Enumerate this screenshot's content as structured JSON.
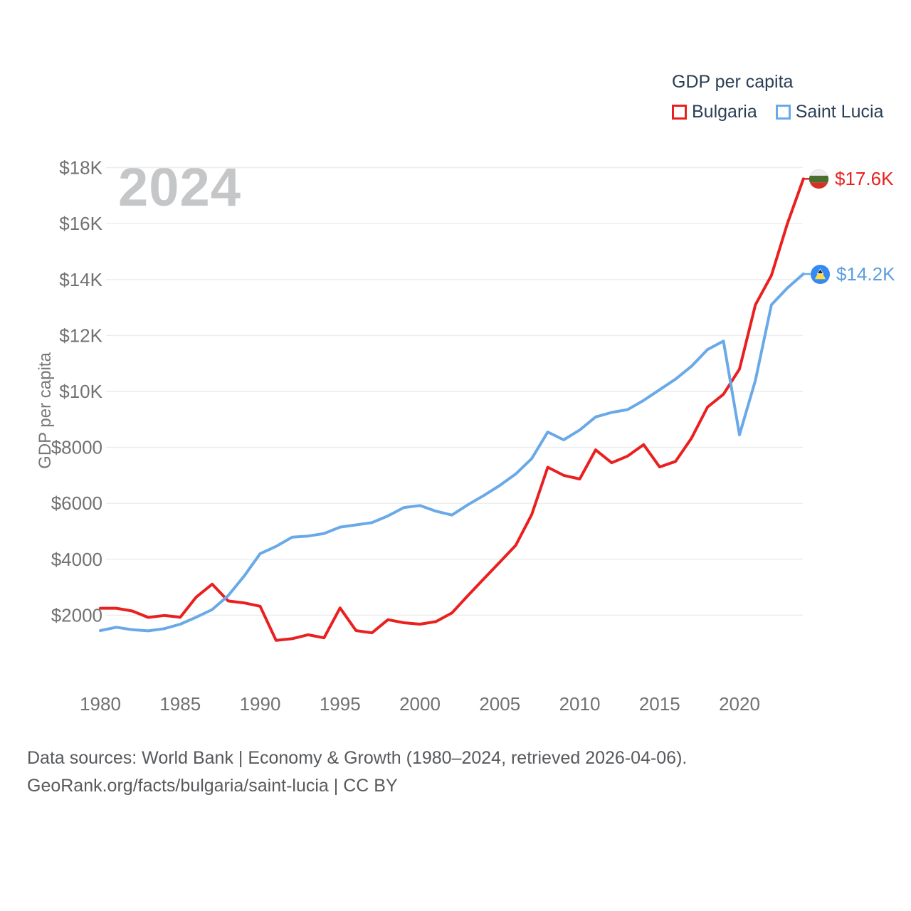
{
  "legend": {
    "title": "GDP per capita",
    "items": [
      {
        "label": "Bulgaria",
        "color": "#e9201f"
      },
      {
        "label": "Saint Lucia",
        "color": "#6aa9e8"
      }
    ]
  },
  "watermark": "2024",
  "footer": {
    "line1": "Data sources: World Bank | Economy & Growth (1980–2024, retrieved 2026-04-06).",
    "line2": "GeoRank.org/facts/bulgaria/saint-lucia | CC BY"
  },
  "chart_data": {
    "type": "line",
    "title": "GDP per capita",
    "ylabel": "GDP per capita",
    "xlabel": "",
    "grid": true,
    "legend_position": "top-right",
    "ylim": [
      0,
      18500
    ],
    "xlim": [
      1980,
      2024
    ],
    "x_ticks": [
      1980,
      1985,
      1990,
      1995,
      2000,
      2005,
      2010,
      2015,
      2020
    ],
    "y_ticks": [
      {
        "value": 2000,
        "label": "$2000"
      },
      {
        "value": 4000,
        "label": "$4000"
      },
      {
        "value": 6000,
        "label": "$6000"
      },
      {
        "value": 8000,
        "label": "$8000"
      },
      {
        "value": 10000,
        "label": "$10K"
      },
      {
        "value": 12000,
        "label": "$12K"
      },
      {
        "value": 14000,
        "label": "$14K"
      },
      {
        "value": 16000,
        "label": "$16K"
      },
      {
        "value": 18000,
        "label": "$18K"
      }
    ],
    "x": [
      1980,
      1981,
      1982,
      1983,
      1984,
      1985,
      1986,
      1987,
      1988,
      1989,
      1990,
      1991,
      1992,
      1993,
      1994,
      1995,
      1996,
      1997,
      1998,
      1999,
      2000,
      2001,
      2002,
      2003,
      2004,
      2005,
      2006,
      2007,
      2008,
      2009,
      2010,
      2011,
      2012,
      2013,
      2014,
      2015,
      2016,
      2017,
      2018,
      2019,
      2020,
      2021,
      2022,
      2023,
      2024
    ],
    "series": [
      {
        "name": "Bulgaria",
        "color": "#e9201f",
        "end_label": "$17.6K",
        "flag": "bulgaria-flag",
        "values": [
          2250,
          2250,
          2150,
          1920,
          1990,
          1930,
          2650,
          3110,
          2510,
          2440,
          2320,
          1100,
          1160,
          1300,
          1190,
          2260,
          1450,
          1370,
          1840,
          1730,
          1680,
          1770,
          2080,
          2700,
          3300,
          3900,
          4500,
          5600,
          7290,
          7000,
          6870,
          7910,
          7450,
          7690,
          8100,
          7300,
          7500,
          8330,
          9440,
          9900,
          10800,
          13100,
          14150,
          16000,
          17600
        ]
      },
      {
        "name": "Saint Lucia",
        "color": "#6aa9e8",
        "end_label": "$14.2K",
        "flag": "saint-lucia-flag",
        "values": [
          1450,
          1570,
          1480,
          1440,
          1520,
          1680,
          1930,
          2200,
          2700,
          3400,
          4200,
          4460,
          4790,
          4830,
          4920,
          5150,
          5230,
          5310,
          5550,
          5850,
          5920,
          5720,
          5580,
          5950,
          6280,
          6640,
          7050,
          7600,
          8550,
          8270,
          8620,
          9090,
          9250,
          9350,
          9680,
          10060,
          10440,
          10900,
          11500,
          11800,
          8450,
          10400,
          13100,
          13700,
          14200
        ]
      }
    ]
  }
}
